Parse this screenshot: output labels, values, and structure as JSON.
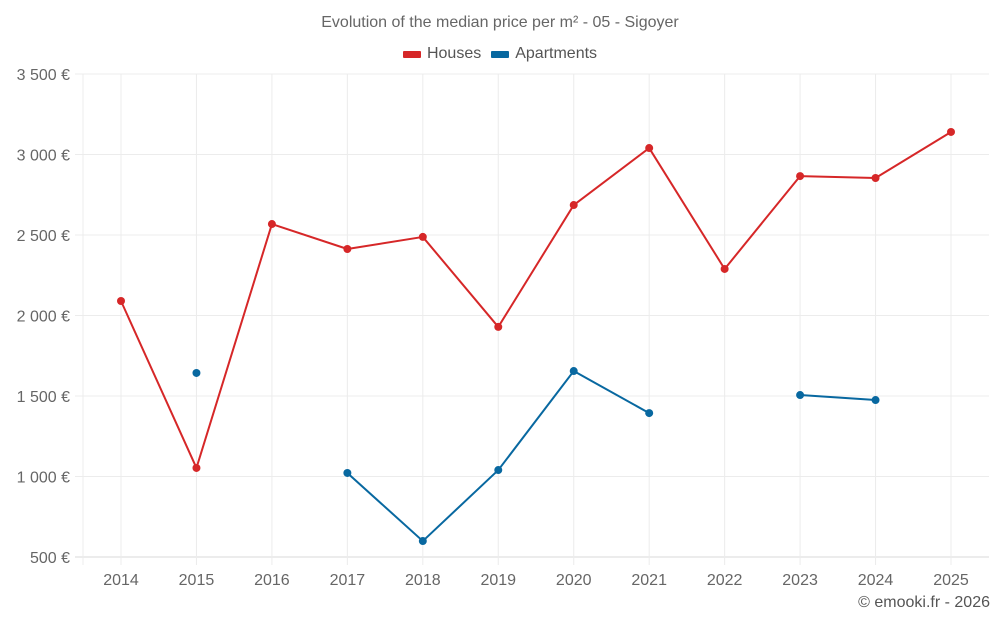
{
  "chart_data": {
    "type": "line",
    "title": "Evolution of the median price per m² - 05 - Sigoyer",
    "xlabel": "",
    "ylabel": "",
    "categories": [
      "2014",
      "2015",
      "2016",
      "2017",
      "2018",
      "2019",
      "2020",
      "2021",
      "2022",
      "2023",
      "2024",
      "2025"
    ],
    "ylim": [
      500,
      3500
    ],
    "yticks": [
      500,
      1000,
      1500,
      2000,
      2500,
      3000,
      3500
    ],
    "ytick_labels": [
      "500 €",
      "1 000 €",
      "1 500 €",
      "2 000 €",
      "2 500 €",
      "3 000 €",
      "3 500 €"
    ],
    "grid": true,
    "legend_position": "top-center",
    "series": [
      {
        "name": "Houses",
        "color": "#d62728",
        "values": [
          2090,
          1053,
          2568,
          2413,
          2488,
          1929,
          2686,
          3040,
          2289,
          2866,
          2854,
          3140
        ]
      },
      {
        "name": "Apartments",
        "color": "#0868a0",
        "values": [
          null,
          1643,
          null,
          1022,
          599,
          1040,
          1655,
          1394,
          null,
          1506,
          1475,
          null
        ]
      }
    ]
  },
  "credit": "© emooki.fr - 2026"
}
